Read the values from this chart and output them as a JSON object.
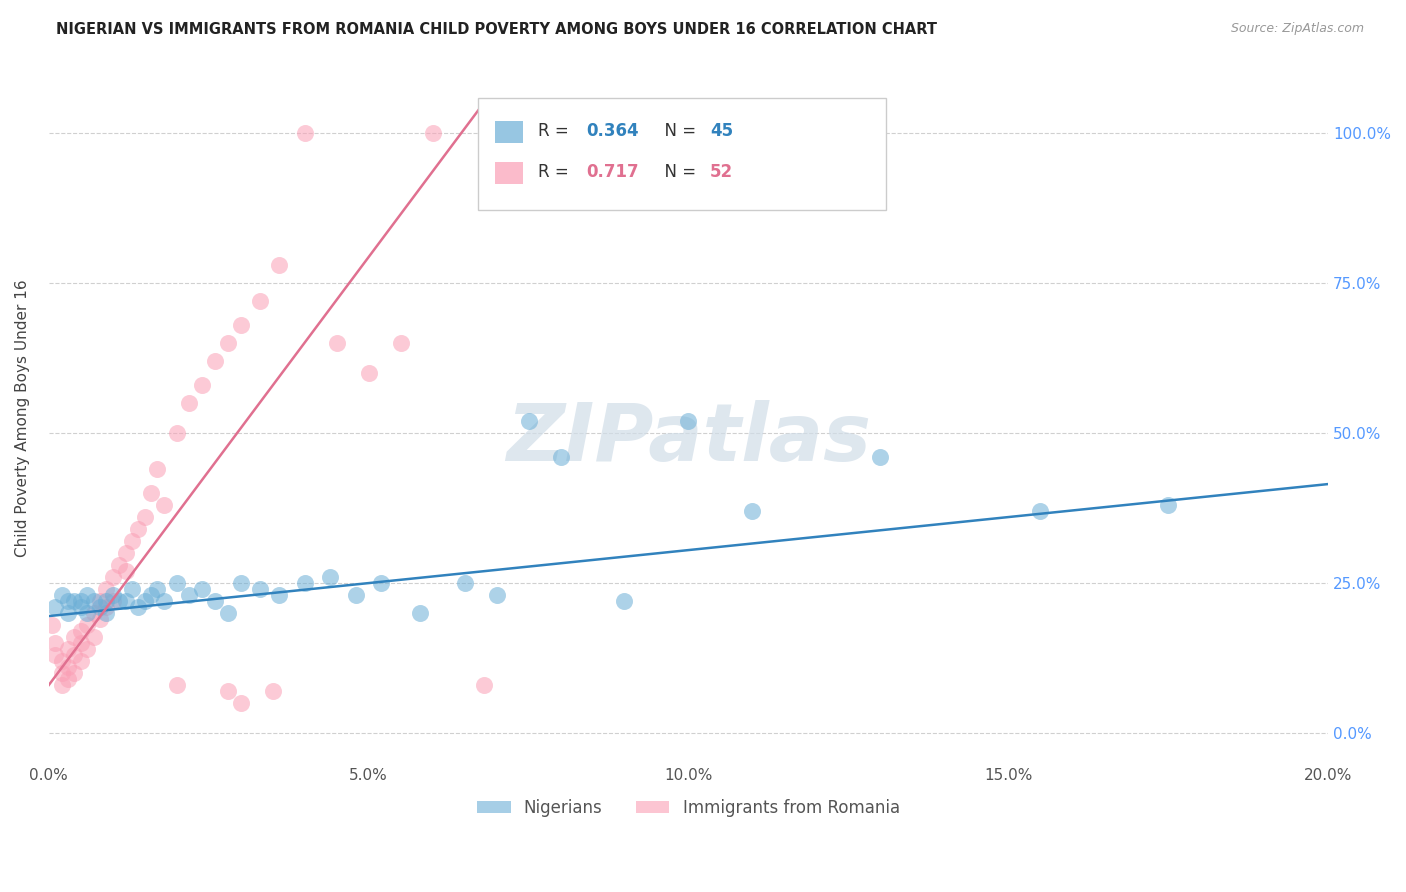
{
  "title": "NIGERIAN VS IMMIGRANTS FROM ROMANIA CHILD POVERTY AMONG BOYS UNDER 16 CORRELATION CHART",
  "source": "Source: ZipAtlas.com",
  "ylabel": "Child Poverty Among Boys Under 16",
  "xlim": [
    0.0,
    0.2
  ],
  "ylim": [
    -0.05,
    1.1
  ],
  "xtick_vals": [
    0.0,
    0.05,
    0.1,
    0.15,
    0.2
  ],
  "xtick_labels": [
    "0.0%",
    "5.0%",
    "10.0%",
    "15.0%",
    "20.0%"
  ],
  "ytick_vals": [
    0.0,
    0.25,
    0.5,
    0.75,
    1.0
  ],
  "ytick_labels": [
    "0.0%",
    "25.0%",
    "50.0%",
    "75.0%",
    "100.0%"
  ],
  "watermark": "ZIPatlas",
  "legend_R_blue": "0.364",
  "legend_N_blue": "45",
  "legend_R_pink": "0.717",
  "legend_N_pink": "52",
  "legend_label_blue": "Nigerians",
  "legend_label_pink": "Immigrants from Romania",
  "blue_color": "#6baed6",
  "pink_color": "#fa9fb5",
  "blue_line_color": "#3182bd",
  "pink_line_color": "#e07090",
  "background_color": "#ffffff",
  "grid_color": "#d0d0d0",
  "nigerian_scatter_x": [
    0.001,
    0.002,
    0.003,
    0.003,
    0.004,
    0.005,
    0.005,
    0.006,
    0.006,
    0.007,
    0.008,
    0.009,
    0.009,
    0.01,
    0.011,
    0.012,
    0.013,
    0.014,
    0.015,
    0.016,
    0.017,
    0.018,
    0.02,
    0.022,
    0.024,
    0.026,
    0.028,
    0.03,
    0.033,
    0.036,
    0.04,
    0.044,
    0.048,
    0.052,
    0.058,
    0.065,
    0.07,
    0.075,
    0.08,
    0.09,
    0.1,
    0.11,
    0.13,
    0.155,
    0.175
  ],
  "nigerian_scatter_y": [
    0.21,
    0.23,
    0.22,
    0.2,
    0.22,
    0.22,
    0.21,
    0.23,
    0.2,
    0.22,
    0.21,
    0.22,
    0.2,
    0.23,
    0.22,
    0.22,
    0.24,
    0.21,
    0.22,
    0.23,
    0.24,
    0.22,
    0.25,
    0.23,
    0.24,
    0.22,
    0.2,
    0.25,
    0.24,
    0.23,
    0.25,
    0.26,
    0.23,
    0.25,
    0.2,
    0.25,
    0.23,
    0.52,
    0.46,
    0.22,
    0.52,
    0.37,
    0.46,
    0.37,
    0.38
  ],
  "romanian_scatter_x": [
    0.0005,
    0.001,
    0.001,
    0.002,
    0.002,
    0.002,
    0.003,
    0.003,
    0.003,
    0.004,
    0.004,
    0.004,
    0.005,
    0.005,
    0.005,
    0.006,
    0.006,
    0.007,
    0.007,
    0.008,
    0.008,
    0.009,
    0.009,
    0.01,
    0.01,
    0.011,
    0.012,
    0.012,
    0.013,
    0.014,
    0.015,
    0.016,
    0.017,
    0.018,
    0.02,
    0.022,
    0.024,
    0.026,
    0.028,
    0.03,
    0.033,
    0.036,
    0.04,
    0.045,
    0.05,
    0.055,
    0.06,
    0.068,
    0.02,
    0.028,
    0.03,
    0.035
  ],
  "romanian_scatter_y": [
    0.18,
    0.15,
    0.13,
    0.12,
    0.1,
    0.08,
    0.14,
    0.11,
    0.09,
    0.16,
    0.13,
    0.1,
    0.17,
    0.15,
    0.12,
    0.18,
    0.14,
    0.2,
    0.16,
    0.22,
    0.19,
    0.24,
    0.21,
    0.26,
    0.22,
    0.28,
    0.3,
    0.27,
    0.32,
    0.34,
    0.36,
    0.4,
    0.44,
    0.38,
    0.5,
    0.55,
    0.58,
    0.62,
    0.65,
    0.68,
    0.72,
    0.78,
    1.0,
    0.65,
    0.6,
    0.65,
    1.0,
    0.08,
    0.08,
    0.07,
    0.05,
    0.07
  ],
  "nigerian_trend_x": [
    0.0,
    0.2
  ],
  "nigerian_trend_y": [
    0.195,
    0.415
  ],
  "romanian_trend_x": [
    0.0,
    0.068
  ],
  "romanian_trend_y": [
    0.08,
    1.05
  ]
}
